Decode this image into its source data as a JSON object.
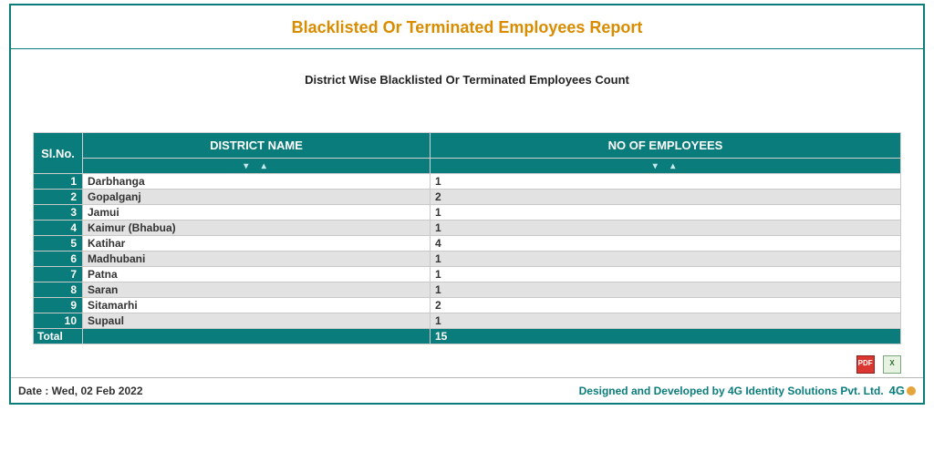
{
  "colors": {
    "brand": "#0b7c7c",
    "title": "#d98c00",
    "row_even": "#ffffff",
    "row_odd": "#e2e2e2",
    "border": "#c9c9c9",
    "pdf": "#d9372f",
    "xls": "#e7f2e2"
  },
  "header": {
    "title": "Blacklisted Or Terminated Employees Report",
    "subtitle": "District Wise Blacklisted Or Terminated Employees Count"
  },
  "table": {
    "columns": [
      "Sl.No.",
      "DISTRICT NAME",
      "NO OF EMPLOYEES"
    ],
    "sort_glyphs": "❤   ❤",
    "rows": [
      {
        "sl": "1",
        "district": "Darbhanga",
        "count": "1"
      },
      {
        "sl": "2",
        "district": "Gopalganj",
        "count": "2"
      },
      {
        "sl": "3",
        "district": "Jamui",
        "count": "1"
      },
      {
        "sl": "4",
        "district": "Kaimur (Bhabua)",
        "count": "1"
      },
      {
        "sl": "5",
        "district": "Katihar",
        "count": "4"
      },
      {
        "sl": "6",
        "district": "Madhubani",
        "count": "1"
      },
      {
        "sl": "7",
        "district": "Patna",
        "count": "1"
      },
      {
        "sl": "8",
        "district": "Saran",
        "count": "1"
      },
      {
        "sl": "9",
        "district": "Sitamarhi",
        "count": "2"
      },
      {
        "sl": "10",
        "district": "Supaul",
        "count": "1"
      }
    ],
    "total_label": "Total",
    "total_value": "15"
  },
  "export": {
    "pdf_label": "PDF",
    "xls_label": "X"
  },
  "footer": {
    "date_label": "Date : Wed, 02 Feb 2022",
    "credit": "Designed and Developed by 4G Identity Solutions Pvt. Ltd.",
    "logo_text": "4G"
  }
}
